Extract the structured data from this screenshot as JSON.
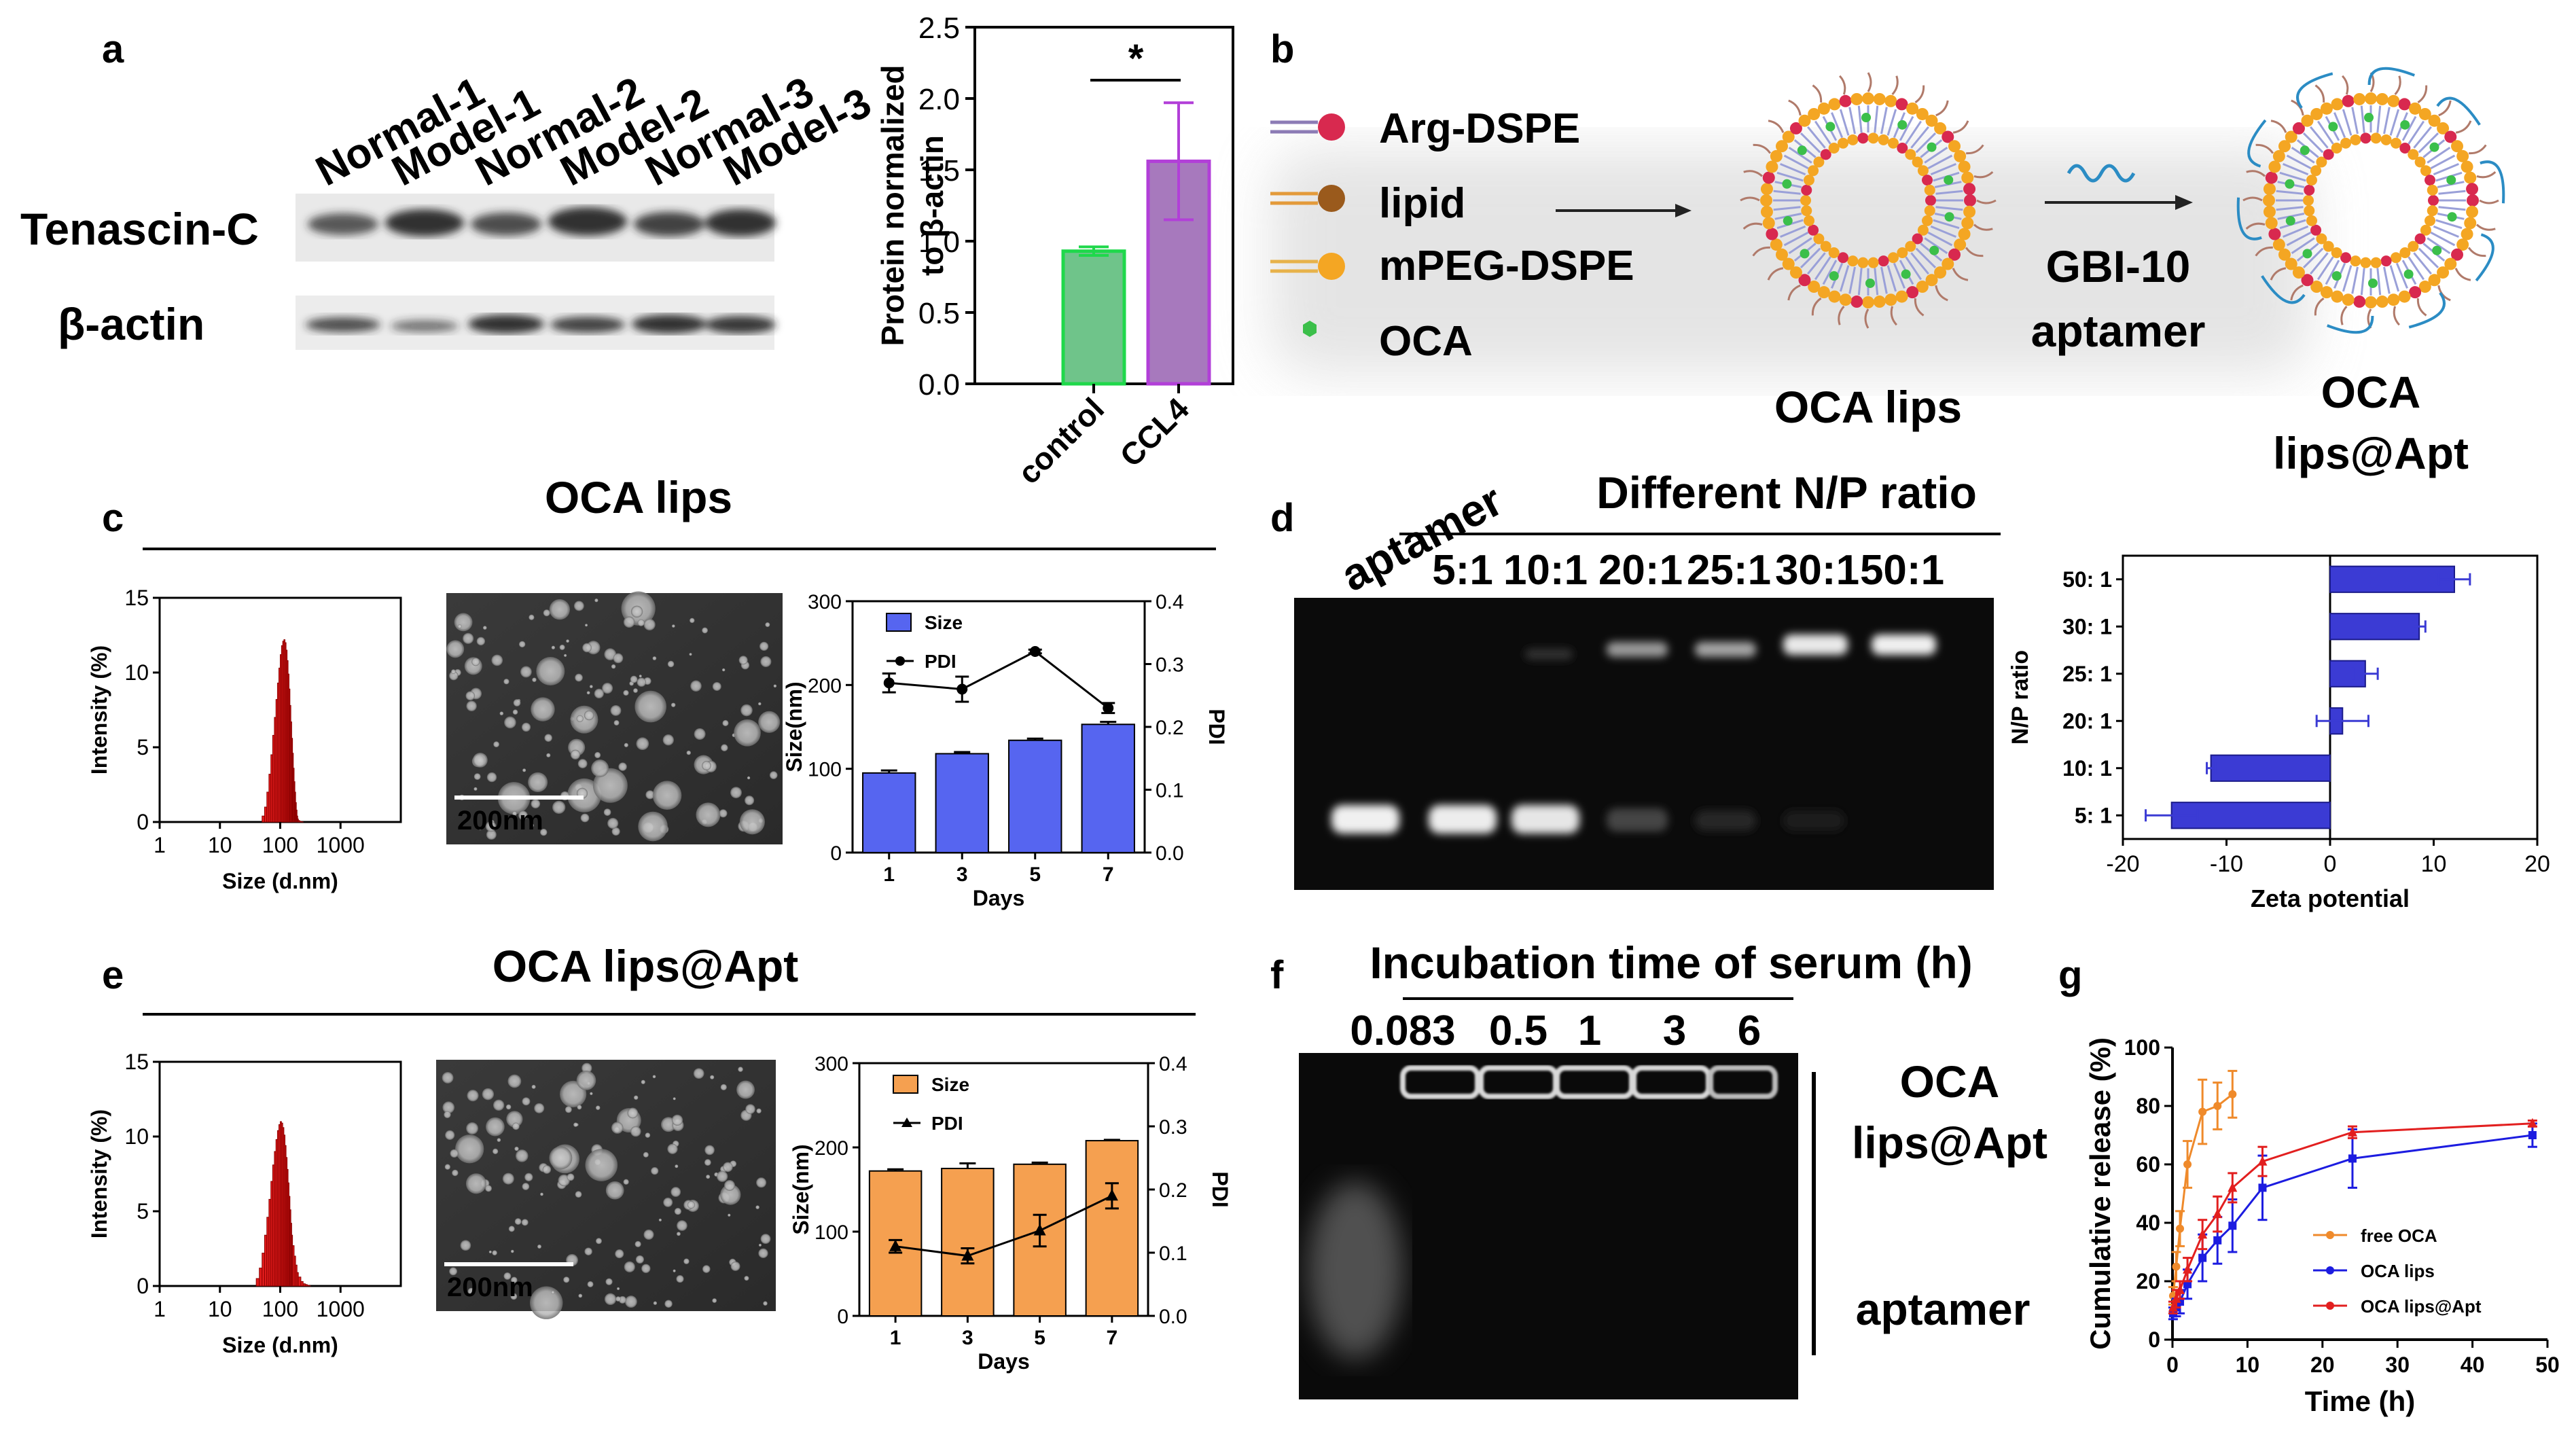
{
  "panel_letters": {
    "a": "a",
    "b": "b",
    "c": "c",
    "d": "d",
    "e": "e",
    "f": "f",
    "g": "g"
  },
  "panel_a": {
    "lane_labels": [
      "Normal-1",
      "Model-1",
      "Normal-2",
      "Model-2",
      "Normal-3",
      "Model-3"
    ],
    "row_labels": [
      "Tenascin-C",
      "β-actin"
    ]
  },
  "panel_b": {
    "legend": [
      "Arg-DSPE",
      "lipid",
      "mPEG-DSPE",
      "OCA"
    ],
    "reagent": [
      "GBI-10",
      "aptamer"
    ],
    "captions": [
      "OCA lips",
      "OCA",
      "lips@Apt"
    ]
  },
  "panel_c_title": "OCA lips",
  "panel_e_title": "OCA lips@Apt",
  "scale_bar": "200nm",
  "panel_d": {
    "header": "Different N/P ratio",
    "lane_labels": [
      "aptamer",
      "5:1",
      "10:1",
      "20:1",
      "25:1",
      "30:1",
      "50:1"
    ]
  },
  "panel_f": {
    "header": "Incubation time of serum (h)",
    "lane_labels": [
      "0.083",
      "0.5",
      "1",
      "3",
      "6"
    ],
    "side_labels": [
      "OCA",
      "lips@Apt",
      "aptamer"
    ]
  },
  "chart_data": [
    {
      "id": "a_bar",
      "type": "bar",
      "categories": [
        "control",
        "CCL4"
      ],
      "values": [
        0.93,
        1.56
      ],
      "errors": [
        0.03,
        0.41
      ],
      "colors": [
        "#6fc48a",
        "#a779bd"
      ],
      "edge_colors": [
        "#1fd84b",
        "#b23fd8"
      ],
      "ylabel": "Protein normalized to β-actin",
      "ylim": [
        0,
        2.5
      ],
      "yticks": [
        "0.0",
        "0.5",
        "1.0",
        "1.5",
        "2.0",
        "2.5"
      ],
      "significance": "*"
    },
    {
      "id": "c_dls",
      "type": "bar",
      "x": [
        50,
        55,
        60,
        65,
        70,
        75,
        80,
        85,
        90,
        95,
        100,
        105,
        110,
        115,
        120,
        125,
        130,
        135,
        140,
        145,
        150,
        155,
        160,
        165,
        170,
        175,
        180,
        185,
        190,
        195,
        200,
        210,
        220,
        230,
        240
      ],
      "values": [
        0.4,
        1.0,
        2.0,
        3.2,
        4.5,
        5.8,
        7.0,
        8.2,
        9.3,
        10.3,
        11.2,
        11.8,
        12.1,
        12.2,
        12.0,
        11.5,
        10.8,
        9.9,
        8.9,
        7.8,
        6.7,
        5.6,
        4.6,
        3.6,
        2.7,
        2.0,
        1.3,
        0.8,
        0.4,
        0.2,
        0.1,
        0.05,
        0.02,
        0.01,
        0.0
      ],
      "color": "#e01b1b",
      "xlabel": "Size (d.nm)",
      "ylabel": "Intensity (%)",
      "xscale": "log",
      "xticks": [
        "1",
        "10",
        "100",
        "1000"
      ],
      "yticks": [
        "0",
        "5",
        "10",
        "15"
      ],
      "ylim": [
        0,
        15
      ]
    },
    {
      "id": "c_size",
      "type": "bar+line",
      "categories": [
        "1",
        "3",
        "5",
        "7"
      ],
      "size": [
        95,
        118,
        134,
        153
      ],
      "size_err": [
        3,
        2,
        2,
        3
      ],
      "pdi": [
        0.27,
        0.26,
        0.32,
        0.23
      ],
      "pdi_err": [
        0.015,
        0.02,
        0.003,
        0.008
      ],
      "bar_color": "#5665f0",
      "xlabel": "Days",
      "ylabel": "Size(nm)",
      "y2label": "PDI",
      "ylim": [
        0,
        300
      ],
      "yticks": [
        "0",
        "100",
        "200",
        "300"
      ],
      "y2lim": [
        0,
        0.4
      ],
      "y2ticks": [
        "0.0",
        "0.1",
        "0.2",
        "0.3",
        "0.4"
      ],
      "legend": [
        "Size",
        "PDI"
      ]
    },
    {
      "id": "d_zeta",
      "type": "bar-horizontal",
      "categories": [
        "50: 1",
        "30: 1",
        "25: 1",
        "20: 1",
        "10: 1",
        "5: 1"
      ],
      "values": [
        12,
        8.6,
        3.4,
        1.2,
        -11.5,
        -15.3
      ],
      "errors": [
        1.5,
        0.6,
        1.2,
        2.5,
        0.4,
        2.5
      ],
      "color": "#3b3bd4",
      "xlabel": "Zeta potential",
      "ylabel": "N/P ratio",
      "xlim": [
        -20,
        20
      ],
      "xticks": [
        "-20",
        "-10",
        "0",
        "10",
        "20"
      ]
    },
    {
      "id": "e_dls",
      "type": "bar",
      "x": [
        40,
        45,
        50,
        55,
        60,
        65,
        70,
        75,
        80,
        85,
        90,
        95,
        100,
        105,
        110,
        115,
        120,
        125,
        130,
        135,
        140,
        145,
        150,
        155,
        160,
        170,
        180,
        190,
        200,
        220,
        240,
        260,
        280,
        300
      ],
      "values": [
        0.5,
        1.2,
        2.2,
        3.4,
        4.6,
        5.8,
        7.0,
        8.1,
        9.0,
        9.8,
        10.4,
        10.8,
        11.0,
        10.9,
        10.6,
        10.1,
        9.4,
        8.6,
        7.8,
        6.9,
        6.0,
        5.1,
        4.2,
        3.4,
        2.7,
        2.0,
        1.4,
        0.9,
        0.6,
        0.3,
        0.15,
        0.1,
        0.05,
        0.02
      ],
      "color": "#e01b1b",
      "xlabel": "Size (d.nm)",
      "ylabel": "Intensity (%)",
      "xscale": "log",
      "xticks": [
        "1",
        "10",
        "100",
        "1000"
      ],
      "yticks": [
        "0",
        "5",
        "10",
        "15"
      ],
      "ylim": [
        0,
        15
      ]
    },
    {
      "id": "e_size",
      "type": "bar+line",
      "categories": [
        "1",
        "3",
        "5",
        "7"
      ],
      "size": [
        172,
        175,
        180,
        208
      ],
      "size_err": [
        2,
        6,
        2,
        1
      ],
      "pdi": [
        0.11,
        0.095,
        0.135,
        0.19
      ],
      "pdi_err": [
        0.01,
        0.012,
        0.025,
        0.02
      ],
      "bar_color": "#f5a050",
      "xlabel": "Days",
      "ylabel": "Size(nm)",
      "y2label": "PDI",
      "ylim": [
        0,
        300
      ],
      "yticks": [
        "0",
        "100",
        "200",
        "300"
      ],
      "y2lim": [
        0,
        0.4
      ],
      "y2ticks": [
        "0.0",
        "0.1",
        "0.2",
        "0.3",
        "0.4"
      ],
      "legend": [
        "Size",
        "PDI"
      ]
    },
    {
      "id": "g_release",
      "type": "line",
      "xlabel": "Time (h)",
      "ylabel": "Cumulative release (%)",
      "xlim": [
        0,
        50
      ],
      "ylim": [
        0,
        100
      ],
      "xticks": [
        "0",
        "10",
        "20",
        "30",
        "40",
        "50"
      ],
      "yticks": [
        "0",
        "20",
        "40",
        "60",
        "80",
        "100"
      ],
      "series": [
        {
          "name": "free OCA",
          "color": "#ef8a2b",
          "x": [
            0.083,
            0.5,
            1,
            2,
            4,
            6,
            8
          ],
          "y": [
            15,
            25,
            38,
            60,
            78,
            80,
            84
          ],
          "err": [
            3,
            5,
            6,
            8,
            11,
            8,
            8
          ]
        },
        {
          "name": "OCA lips",
          "color": "#1c1ce0",
          "x": [
            0.083,
            0.5,
            1,
            2,
            4,
            6,
            8,
            12,
            24,
            48
          ],
          "y": [
            9,
            11,
            13,
            19,
            28,
            34,
            39,
            52,
            62,
            70
          ],
          "err": [
            2,
            3,
            4,
            5,
            8,
            8,
            9,
            11,
            10,
            4
          ]
        },
        {
          "name": "OCA lips@Apt",
          "color": "#e21f1f",
          "x": [
            0.083,
            0.5,
            1,
            2,
            4,
            6,
            8,
            12,
            24,
            48
          ],
          "y": [
            11,
            14,
            17,
            24,
            36,
            43,
            52,
            61,
            71,
            74
          ],
          "err": [
            2,
            3,
            3,
            4,
            5,
            6,
            5,
            5,
            2,
            1
          ]
        }
      ]
    }
  ]
}
